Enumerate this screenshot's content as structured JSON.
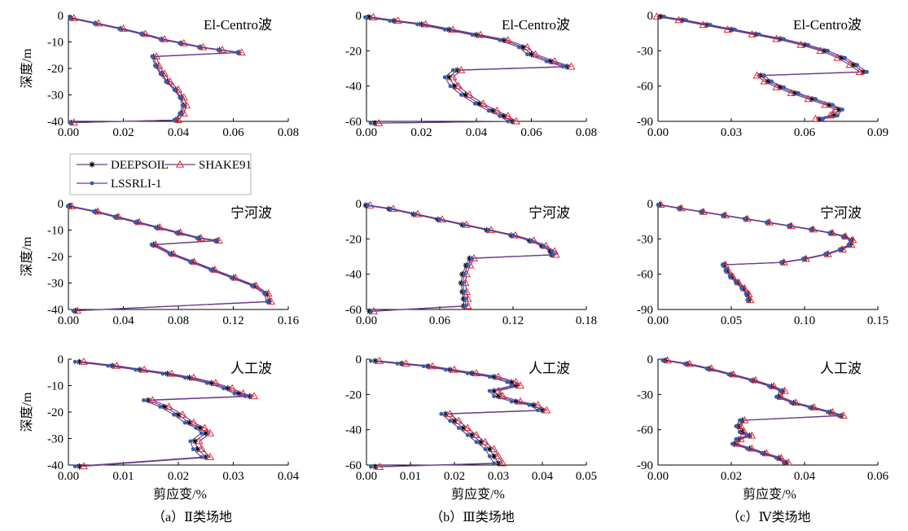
{
  "chart_data": [
    {
      "type": "line",
      "title": "El-Centro波",
      "ylabel": "深度/m",
      "xlabel": "",
      "xlim": [
        0,
        0.08
      ],
      "ylim": [
        -40,
        0
      ],
      "xticks": [
        "0.00",
        "0.02",
        "0.04",
        "0.06",
        "0.08"
      ],
      "yticks": [
        "0",
        "-10",
        "-20",
        "-30",
        "-40"
      ],
      "x": [
        0.001,
        0.01,
        0.019,
        0.027,
        0.034,
        0.041,
        0.048,
        0.055,
        0.062,
        0.031,
        0.032,
        0.034,
        0.036,
        0.039,
        0.041,
        0.042,
        0.041,
        0.039,
        0.001
      ],
      "y": [
        -1,
        -3,
        -5,
        -7,
        -9,
        -10.5,
        -12,
        -13,
        -14,
        -15.5,
        -19,
        -22,
        -25,
        -28,
        -31,
        -34,
        -37,
        -39.5,
        -40.5
      ],
      "series": [
        {
          "name": "DEEPSOIL",
          "dx": 0
        },
        {
          "name": "SHAKE91",
          "dx": 0.001
        },
        {
          "name": "LSSRLI-1",
          "dx": -0.0005
        }
      ]
    },
    {
      "type": "line",
      "title": "El-Centro波",
      "ylabel": "",
      "xlabel": "",
      "xlim": [
        0,
        0.08
      ],
      "ylim": [
        -60,
        0
      ],
      "xticks": [
        "0.00",
        "0.02",
        "0.04",
        "0.06",
        "0.08"
      ],
      "yticks": [
        "0",
        "-20",
        "-40",
        "-60"
      ],
      "x": [
        0.001,
        0.01,
        0.02,
        0.03,
        0.04,
        0.05,
        0.057,
        0.06,
        0.067,
        0.073,
        0.033,
        0.03,
        0.032,
        0.036,
        0.041,
        0.046,
        0.05,
        0.053,
        0.003
      ],
      "y": [
        -1,
        -3,
        -5,
        -8,
        -11,
        -14,
        -18,
        -22,
        -26,
        -29,
        -31,
        -35,
        -40,
        -45,
        -50,
        -54,
        -57,
        -60,
        -61
      ],
      "series": [
        {
          "name": "DEEPSOIL",
          "dx": 0
        },
        {
          "name": "SHAKE91",
          "dx": 0.0015
        },
        {
          "name": "LSSRLI-1",
          "dx": -0.0015
        }
      ]
    },
    {
      "type": "line",
      "title": "El-Centro波",
      "ylabel": "",
      "xlabel": "",
      "xlim": [
        0,
        0.09
      ],
      "ylim": [
        -90,
        0
      ],
      "xticks": [
        "0.00",
        "0.03",
        "0.06",
        "0.09"
      ],
      "yticks": [
        "0",
        "-30",
        "-60",
        "-90"
      ],
      "x": [
        0.001,
        0.01,
        0.02,
        0.03,
        0.04,
        0.05,
        0.06,
        0.068,
        0.075,
        0.08,
        0.084,
        0.042,
        0.045,
        0.05,
        0.056,
        0.063,
        0.07,
        0.074,
        0.072,
        0.066
      ],
      "y": [
        -1,
        -4,
        -8,
        -12,
        -16,
        -20,
        -25,
        -30,
        -36,
        -42,
        -48,
        -51,
        -56,
        -61,
        -66,
        -71,
        -76,
        -80,
        -85,
        -88
      ],
      "series": [
        {
          "name": "DEEPSOIL",
          "dx": 0
        },
        {
          "name": "SHAKE91",
          "dx": -0.0015
        },
        {
          "name": "LSSRLI-1",
          "dx": 0.0015
        }
      ]
    },
    {
      "type": "line",
      "title": "宁河波",
      "ylabel": "深度/m",
      "xlabel": "",
      "xlim": [
        0,
        0.16
      ],
      "ylim": [
        -40,
        0
      ],
      "xticks": [
        "0.00",
        "0.04",
        "0.08",
        "0.12",
        "0.16"
      ],
      "yticks": [
        "0",
        "-10",
        "-20",
        "-30",
        "-40"
      ],
      "x": [
        0.001,
        0.02,
        0.035,
        0.05,
        0.065,
        0.08,
        0.095,
        0.108,
        0.062,
        0.075,
        0.09,
        0.105,
        0.12,
        0.135,
        0.144,
        0.146,
        0.005
      ],
      "y": [
        -1,
        -3,
        -5,
        -7,
        -9,
        -11,
        -13,
        -14,
        -15.5,
        -19,
        -22,
        -25,
        -28,
        -31,
        -34,
        -37,
        -40.5
      ],
      "series": [
        {
          "name": "DEEPSOIL",
          "dx": 0
        },
        {
          "name": "SHAKE91",
          "dx": 0.0015
        },
        {
          "name": "LSSRLI-1",
          "dx": -0.0015
        }
      ]
    },
    {
      "type": "line",
      "title": "宁河波",
      "ylabel": "",
      "xlabel": "",
      "xlim": [
        0,
        0.18
      ],
      "ylim": [
        -60,
        0
      ],
      "xticks": [
        "0.00",
        "0.06",
        "0.12",
        "0.18"
      ],
      "yticks": [
        "0",
        "-20",
        "-40",
        "-60"
      ],
      "x": [
        0.001,
        0.02,
        0.04,
        0.06,
        0.08,
        0.1,
        0.12,
        0.135,
        0.145,
        0.152,
        0.153,
        0.086,
        0.083,
        0.08,
        0.079,
        0.08,
        0.081,
        0.081,
        0.004
      ],
      "y": [
        -1,
        -3,
        -6,
        -9,
        -12,
        -15,
        -18,
        -21,
        -24,
        -27,
        -29,
        -31,
        -35,
        -40,
        -45,
        -50,
        -54,
        -58,
        -61
      ],
      "series": [
        {
          "name": "DEEPSOIL",
          "dx": -0.0015
        },
        {
          "name": "SHAKE91",
          "dx": 0.002
        },
        {
          "name": "LSSRLI-1",
          "dx": 0
        }
      ]
    },
    {
      "type": "line",
      "title": "宁河波",
      "ylabel": "",
      "xlabel": "",
      "xlim": [
        0,
        0.15
      ],
      "ylim": [
        -90,
        0
      ],
      "xticks": [
        "0.00",
        "0.05",
        "0.10",
        "0.15"
      ],
      "yticks": [
        "0",
        "-30",
        "-60",
        "-90"
      ],
      "x": [
        0.001,
        0.015,
        0.03,
        0.045,
        0.06,
        0.075,
        0.09,
        0.105,
        0.118,
        0.127,
        0.132,
        0.131,
        0.125,
        0.115,
        0.1,
        0.085,
        0.045,
        0.047,
        0.05,
        0.054,
        0.058,
        0.061,
        0.062
      ],
      "y": [
        -1,
        -4,
        -7,
        -10,
        -13,
        -16,
        -19,
        -22,
        -25,
        -28,
        -31,
        -35,
        -39,
        -43,
        -47,
        -50,
        -52,
        -57,
        -62,
        -67,
        -72,
        -77,
        -82
      ],
      "series": [
        {
          "name": "DEEPSOIL",
          "dx": 0
        },
        {
          "name": "SHAKE91",
          "dx": 0.001
        },
        {
          "name": "LSSRLI-1",
          "dx": -0.001
        }
      ]
    },
    {
      "type": "line",
      "title": "人工波",
      "ylabel": "深度/m",
      "xlabel": "剪应变/%",
      "xlim": [
        0,
        0.04
      ],
      "ylim": [
        -40,
        0
      ],
      "xticks": [
        "0.00",
        "0.01",
        "0.02",
        "0.03",
        "0.04"
      ],
      "yticks": [
        "0",
        "-10",
        "-20",
        "-30",
        "-40"
      ],
      "x": [
        0.002,
        0.008,
        0.013,
        0.018,
        0.022,
        0.026,
        0.029,
        0.031,
        0.033,
        0.0145,
        0.0175,
        0.02,
        0.022,
        0.024,
        0.025,
        0.023,
        0.0235,
        0.025,
        0.002
      ],
      "y": [
        -1,
        -2.5,
        -4,
        -5.5,
        -7,
        -9,
        -11,
        -13,
        -14,
        -15.5,
        -18,
        -21,
        -24,
        -26,
        -28,
        -31,
        -34,
        -37,
        -40.5
      ],
      "series": [
        {
          "name": "DEEPSOIL",
          "dx": 0
        },
        {
          "name": "SHAKE91",
          "dx": 0.0008
        },
        {
          "name": "LSSRLI-1",
          "dx": -0.0008
        }
      ]
    },
    {
      "type": "line",
      "title": "人工波",
      "ylabel": "",
      "xlabel": "剪应变/%",
      "xlim": [
        0,
        0.05
      ],
      "ylim": [
        -60,
        0
      ],
      "xticks": [
        "0.00",
        "0.01",
        "0.02",
        "0.03",
        "0.04",
        "0.05"
      ],
      "yticks": [
        "0",
        "-20",
        "-40",
        "-60"
      ],
      "x": [
        0.002,
        0.008,
        0.014,
        0.019,
        0.024,
        0.029,
        0.033,
        0.034,
        0.029,
        0.03,
        0.034,
        0.038,
        0.04,
        0.018,
        0.02,
        0.022,
        0.024,
        0.026,
        0.028,
        0.029,
        0.03,
        0.002
      ],
      "y": [
        -1,
        -2.5,
        -4,
        -6,
        -8,
        -10,
        -13,
        -15,
        -18,
        -21,
        -24,
        -26,
        -29,
        -31,
        -35,
        -39,
        -43,
        -47,
        -51,
        -55,
        -59,
        -61
      ],
      "series": [
        {
          "name": "DEEPSOIL",
          "dx": 0
        },
        {
          "name": "SHAKE91",
          "dx": 0.001
        },
        {
          "name": "LSSRLI-1",
          "dx": -0.001
        }
      ]
    },
    {
      "type": "line",
      "title": "人工波",
      "ylabel": "",
      "xlabel": "剪应变/%",
      "xlim": [
        0,
        0.06
      ],
      "ylim": [
        -90,
        0
      ],
      "xticks": [
        "0.00",
        "0.02",
        "0.04",
        "0.06"
      ],
      "yticks": [
        "0",
        "-30",
        "-60",
        "-90"
      ],
      "x": [
        0.002,
        0.008,
        0.014,
        0.02,
        0.026,
        0.031,
        0.034,
        0.033,
        0.037,
        0.042,
        0.047,
        0.05,
        0.023,
        0.022,
        0.023,
        0.025,
        0.022,
        0.021,
        0.025,
        0.029,
        0.033,
        0.035
      ],
      "y": [
        -1,
        -4,
        -8,
        -13,
        -18,
        -23,
        -27,
        -32,
        -37,
        -41,
        -45,
        -48,
        -52,
        -57,
        -62,
        -65,
        -68,
        -72,
        -76,
        -80,
        -84,
        -88
      ],
      "series": [
        {
          "name": "DEEPSOIL",
          "dx": 0
        },
        {
          "name": "SHAKE91",
          "dx": 0.0006
        },
        {
          "name": "LSSRLI-1",
          "dx": -0.0007
        }
      ]
    }
  ],
  "legend": {
    "items": [
      {
        "name": "DEEPSOIL",
        "marker": "star",
        "color": "#000000"
      },
      {
        "name": "SHAKE91",
        "marker": "triangle",
        "color": "#e8262a"
      },
      {
        "name": "LSSRLI-1",
        "marker": "dot",
        "color": "#2e5fb0"
      }
    ],
    "line_color": "#6a3a8c"
  },
  "captions": [
    "（a）Ⅱ类场地",
    "（b）Ⅲ类场地",
    "（c）Ⅳ类场地"
  ]
}
